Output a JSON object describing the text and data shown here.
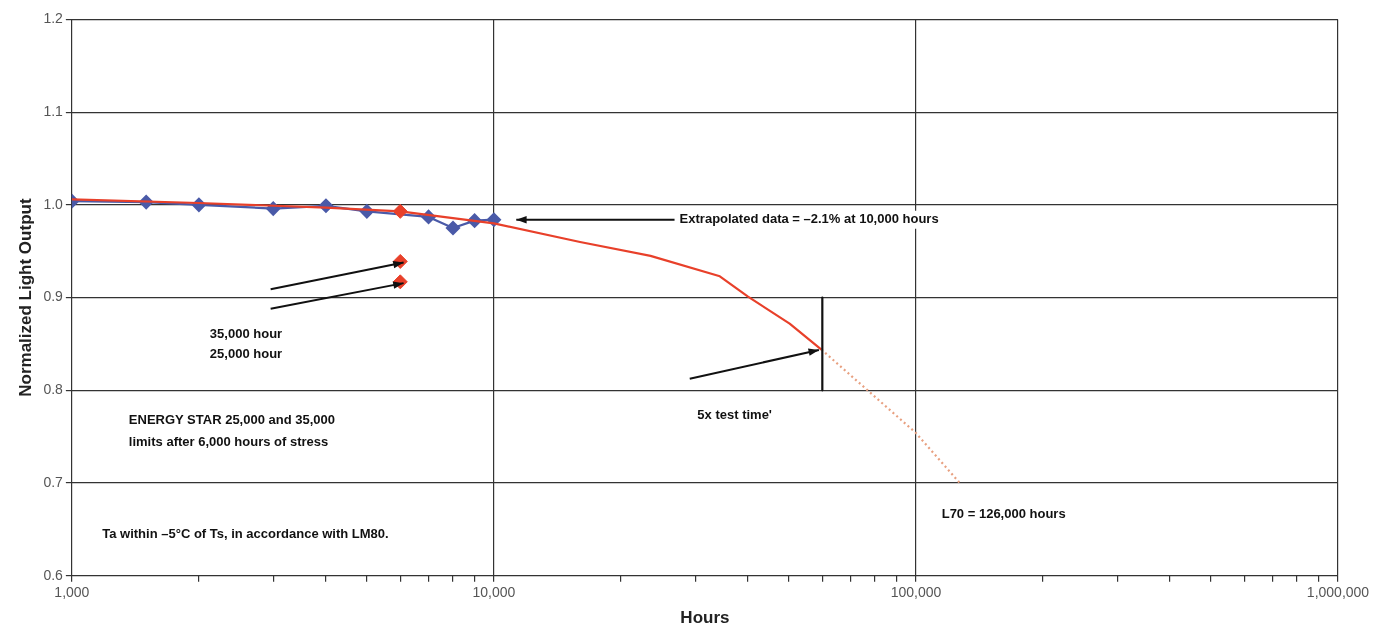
{
  "chart_data": {
    "type": "line",
    "xlabel": "Hours",
    "ylabel": "Normalized Light Output",
    "log": "x",
    "grid": true,
    "legend": false,
    "xlim": [
      1000,
      1000000
    ],
    "xticks": [
      {
        "value": 1000,
        "label": "1,000"
      },
      {
        "value": 2000,
        "label": null
      },
      {
        "value": 3000,
        "label": null
      },
      {
        "value": 4000,
        "label": null
      },
      {
        "value": 5000,
        "label": null
      },
      {
        "value": 6000,
        "label": null
      },
      {
        "value": 7000,
        "label": null
      },
      {
        "value": 8000,
        "label": null
      },
      {
        "value": 9000,
        "label": null
      },
      {
        "value": 10000,
        "label": "10,000"
      },
      {
        "value": 20000,
        "label": null
      },
      {
        "value": 30000,
        "label": null
      },
      {
        "value": 40000,
        "label": null
      },
      {
        "value": 50000,
        "label": null
      },
      {
        "value": 60000,
        "label": null
      },
      {
        "value": 70000,
        "label": null
      },
      {
        "value": 80000,
        "label": null
      },
      {
        "value": 90000,
        "label": null
      },
      {
        "value": 100000,
        "label": "100,000"
      },
      {
        "value": 200000,
        "label": null
      },
      {
        "value": 300000,
        "label": null
      },
      {
        "value": 400000,
        "label": null
      },
      {
        "value": 500000,
        "label": null
      },
      {
        "value": 600000,
        "label": null
      },
      {
        "value": 700000,
        "label": null
      },
      {
        "value": 800000,
        "label": null
      },
      {
        "value": 900000,
        "label": null
      },
      {
        "value": 1000000,
        "label": "1,000,000"
      }
    ],
    "ylim": [
      0.6,
      1.2
    ],
    "yticks": [
      {
        "value": 0.6,
        "label": "0.6"
      },
      {
        "value": 0.7,
        "label": "0.7"
      },
      {
        "value": 0.8,
        "label": "0.8"
      },
      {
        "value": 0.9,
        "label": "0.9"
      },
      {
        "value": 1,
        "label": "1.0"
      },
      {
        "value": 1.1,
        "label": "1.1"
      },
      {
        "value": 1.2,
        "label": "1.2"
      }
    ],
    "series": [
      {
        "type": "line",
        "color": "#4a5aa8",
        "marker": "diamond",
        "line_style": "solid",
        "x": [
          1000,
          1500,
          2000,
          3000,
          4000,
          5000,
          7000,
          8000,
          9000,
          10000
        ],
        "values": [
          1.004,
          1.003,
          1.0,
          0.996,
          0.999,
          0.993,
          0.987,
          0.975,
          0.983,
          0.984
        ]
      },
      {
        "type": "line",
        "color": "#e8402a",
        "marker": "none",
        "line_style": "solid",
        "x": [
          1000,
          2000,
          4000,
          6000,
          10000,
          16000,
          23500,
          34300,
          40000,
          50200,
          59700
        ],
        "values": [
          1.006,
          1.002,
          0.997,
          0.993,
          0.98,
          0.96,
          0.945,
          0.923,
          0.901,
          0.872,
          0.844
        ]
      },
      {
        "type": "line",
        "color": "#e8a080",
        "marker": "none",
        "line_style": "dotted",
        "x": [
          59700,
          100000,
          127000
        ],
        "values": [
          0.844,
          0.754,
          0.7
        ]
      },
      {
        "type": "scatter",
        "color": "#e8402a",
        "marker": "diamond",
        "x": [
          6000,
          6000,
          6000
        ],
        "values": [
          0.993,
          0.939,
          0.917
        ]
      },
      {
        "type": "line",
        "color": "#111111",
        "marker": "none",
        "line_style": "solid",
        "x": [
          60000,
          60000
        ],
        "values": [
          0.9,
          0.8
        ]
      }
    ],
    "annotations": [
      "Extrapolated data = –2.1% at 10,000 hours",
      "35,000 hour",
      "25,000 hour",
      "5x test time'",
      "ENERGY STAR 25,000 and 35,000",
      "limits after 6,000 hours of stress",
      "Ta within –5°C of Ts, in accordance with LM80.",
      "L70 = 126,000 hours"
    ]
  }
}
